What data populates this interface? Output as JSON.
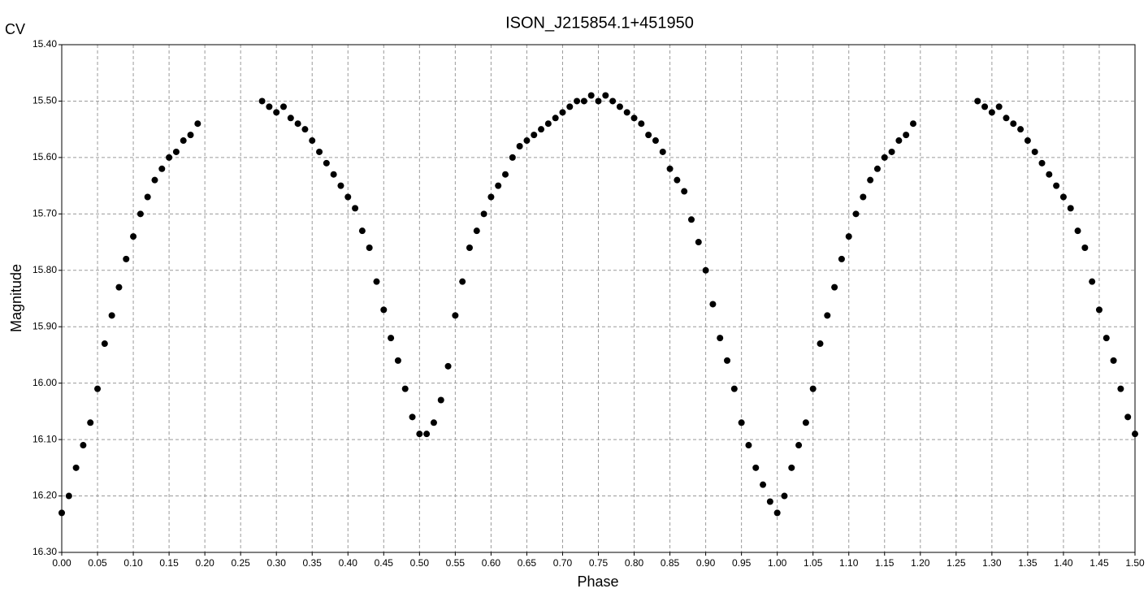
{
  "chart_data": {
    "type": "scatter",
    "title": "ISON_J215854.1+451950",
    "corner_label": "CV",
    "x_label": "Phase",
    "y_label": "Magnitude",
    "xlim": [
      0,
      1.5
    ],
    "ylim": [
      15.4,
      16.3
    ],
    "invert_y": true,
    "grid": true,
    "xticks": [
      {
        "value": 0,
        "label": "0.00"
      },
      {
        "value": 0.05,
        "label": "0.05"
      },
      {
        "value": 0.1,
        "label": "0.10"
      },
      {
        "value": 0.15,
        "label": "0.15"
      },
      {
        "value": 0.2,
        "label": "0.20"
      },
      {
        "value": 0.25,
        "label": "0.25"
      },
      {
        "value": 0.3,
        "label": "0.30"
      },
      {
        "value": 0.35,
        "label": "0.35"
      },
      {
        "value": 0.4,
        "label": "0.40"
      },
      {
        "value": 0.45,
        "label": "0.45"
      },
      {
        "value": 0.5,
        "label": "0.50"
      },
      {
        "value": 0.55,
        "label": "0.55"
      },
      {
        "value": 0.6,
        "label": "0.60"
      },
      {
        "value": 0.65,
        "label": "0.65"
      },
      {
        "value": 0.7,
        "label": "0.70"
      },
      {
        "value": 0.75,
        "label": "0.75"
      },
      {
        "value": 0.8,
        "label": "0.80"
      },
      {
        "value": 0.85,
        "label": "0.85"
      },
      {
        "value": 0.9,
        "label": "0.90"
      },
      {
        "value": 0.95,
        "label": "0.95"
      },
      {
        "value": 1,
        "label": "1.00"
      },
      {
        "value": 1.05,
        "label": "1.05"
      },
      {
        "value": 1.1,
        "label": "1.10"
      },
      {
        "value": 1.15,
        "label": "1.15"
      },
      {
        "value": 1.2,
        "label": "1.20"
      },
      {
        "value": 1.25,
        "label": "1.25"
      },
      {
        "value": 1.3,
        "label": "1.30"
      },
      {
        "value": 1.35,
        "label": "1.35"
      },
      {
        "value": 1.4,
        "label": "1.40"
      },
      {
        "value": 1.45,
        "label": "1.45"
      },
      {
        "value": 1.5,
        "label": "1.50"
      }
    ],
    "yticks": [
      {
        "value": 15.4,
        "label": "15.40"
      },
      {
        "value": 15.5,
        "label": "15.50"
      },
      {
        "value": 15.6,
        "label": "15.60"
      },
      {
        "value": 15.7,
        "label": "15.70"
      },
      {
        "value": 15.8,
        "label": "15.80"
      },
      {
        "value": 15.9,
        "label": "15.90"
      },
      {
        "value": 16,
        "label": "16.00"
      },
      {
        "value": 16.1,
        "label": "16.10"
      },
      {
        "value": 16.2,
        "label": "16.20"
      },
      {
        "value": 16.3,
        "label": "16.30"
      }
    ],
    "x": [
      0.0,
      0.01,
      0.02,
      0.03,
      0.04,
      0.05,
      0.06,
      0.07,
      0.08,
      0.09,
      0.1,
      0.11,
      0.12,
      0.13,
      0.14,
      0.15,
      0.16,
      0.17,
      0.18,
      0.19,
      0.28,
      0.29,
      0.3,
      0.31,
      0.32,
      0.33,
      0.34,
      0.35,
      0.36,
      0.37,
      0.38,
      0.39,
      0.4,
      0.41,
      0.42,
      0.43,
      0.44,
      0.45,
      0.46,
      0.47,
      0.48,
      0.49,
      0.5,
      0.51,
      0.52,
      0.53,
      0.54,
      0.55,
      0.56,
      0.57,
      0.58,
      0.59,
      0.6,
      0.61,
      0.62,
      0.63,
      0.64,
      0.65,
      0.66,
      0.67,
      0.68,
      0.69,
      0.7,
      0.71,
      0.72,
      0.73,
      0.74,
      0.75,
      0.76,
      0.77,
      0.78,
      0.79,
      0.8,
      0.81,
      0.82,
      0.83,
      0.84,
      0.85,
      0.86,
      0.87,
      0.88,
      0.89,
      0.9,
      0.91,
      0.92,
      0.93,
      0.94,
      0.95,
      0.96,
      0.97,
      0.98,
      0.99,
      1.0,
      1.01,
      1.02,
      1.03,
      1.04,
      1.05,
      1.06,
      1.07,
      1.08,
      1.09,
      1.1,
      1.11,
      1.12,
      1.13,
      1.14,
      1.15,
      1.16,
      1.17,
      1.18,
      1.19,
      1.28,
      1.29,
      1.3,
      1.31,
      1.32,
      1.33,
      1.34,
      1.35,
      1.36,
      1.37,
      1.38,
      1.39,
      1.4,
      1.41,
      1.42,
      1.43,
      1.44,
      1.45,
      1.46,
      1.47,
      1.48,
      1.49,
      1.5
    ],
    "series": [
      {
        "color": "#000000",
        "values": [
          16.23,
          16.2,
          16.15,
          16.11,
          16.07,
          16.01,
          15.93,
          15.88,
          15.83,
          15.78,
          15.74,
          15.7,
          15.67,
          15.64,
          15.62,
          15.6,
          15.59,
          15.57,
          15.56,
          15.54,
          15.5,
          15.51,
          15.52,
          15.51,
          15.53,
          15.54,
          15.55,
          15.57,
          15.59,
          15.61,
          15.63,
          15.65,
          15.67,
          15.69,
          15.73,
          15.76,
          15.82,
          15.87,
          15.92,
          15.96,
          16.01,
          16.06,
          16.09,
          16.09,
          16.07,
          16.03,
          15.97,
          15.88,
          15.82,
          15.76,
          15.73,
          15.7,
          15.67,
          15.65,
          15.63,
          15.6,
          15.58,
          15.57,
          15.56,
          15.55,
          15.54,
          15.53,
          15.52,
          15.51,
          15.5,
          15.5,
          15.49,
          15.5,
          15.49,
          15.5,
          15.51,
          15.52,
          15.53,
          15.54,
          15.56,
          15.57,
          15.59,
          15.62,
          15.64,
          15.66,
          15.71,
          15.75,
          15.8,
          15.86,
          15.92,
          15.96,
          16.01,
          16.07,
          16.11,
          16.15,
          16.18,
          16.21,
          16.23,
          16.2,
          16.15,
          16.11,
          16.07,
          16.01,
          15.93,
          15.88,
          15.83,
          15.78,
          15.74,
          15.7,
          15.67,
          15.64,
          15.62,
          15.6,
          15.59,
          15.57,
          15.56,
          15.54,
          15.5,
          15.51,
          15.52,
          15.51,
          15.53,
          15.54,
          15.55,
          15.57,
          15.59,
          15.61,
          15.63,
          15.65,
          15.67,
          15.69,
          15.73,
          15.76,
          15.82,
          15.87,
          15.92,
          15.96,
          16.01,
          16.06,
          16.09
        ]
      }
    ]
  }
}
